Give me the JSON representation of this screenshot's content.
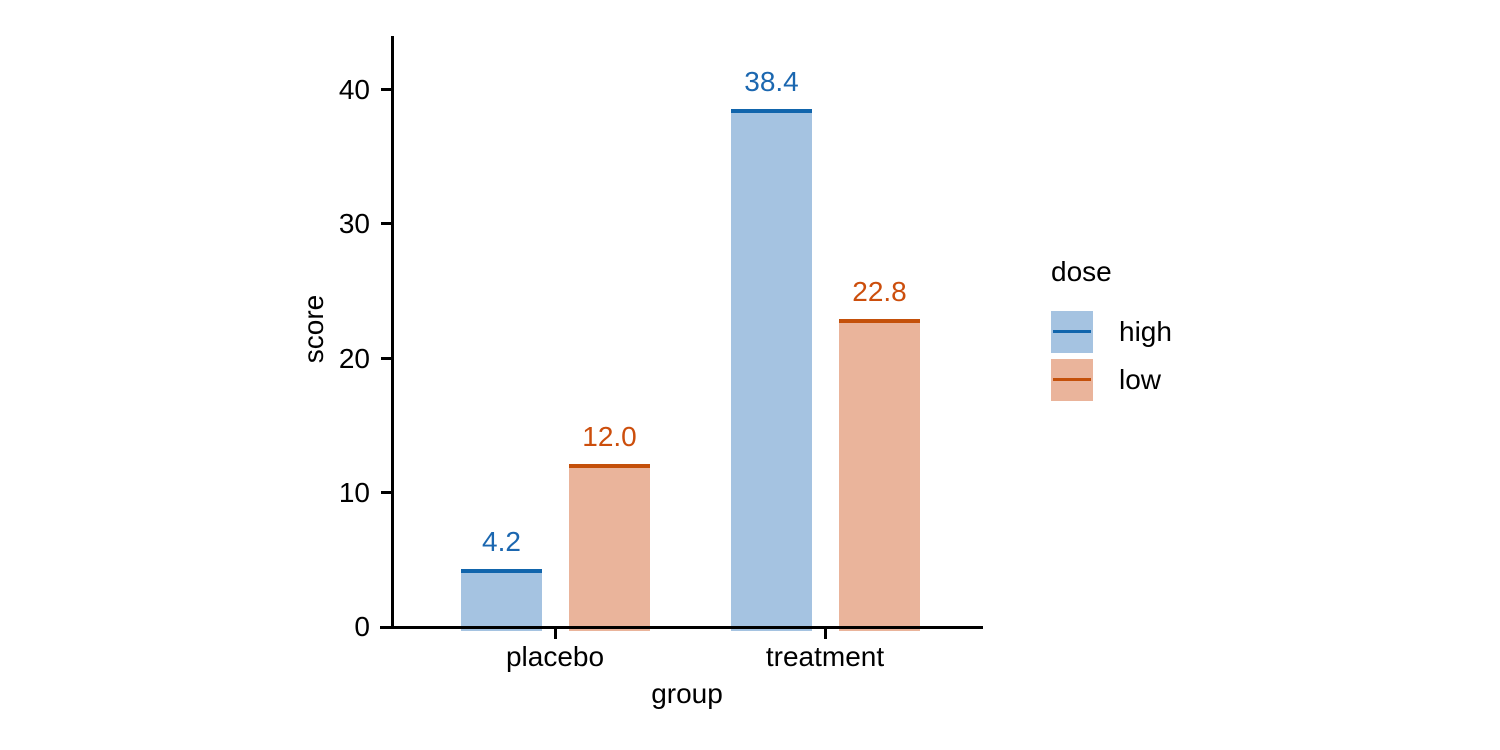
{
  "figure": {
    "background": "#ffffff",
    "axis_color": "#000000",
    "text_color": "#000000"
  },
  "chart_data": {
    "type": "bar",
    "title": "",
    "categories": [
      "placebo",
      "treatment"
    ],
    "series": [
      {
        "name": "high",
        "values": [
          4.2,
          38.4
        ],
        "value_labels": [
          "4.2",
          "38.4"
        ],
        "fill_color": "#a5c3e1",
        "line_color": "#1165ac",
        "label_color": "#1b67b0"
      },
      {
        "name": "low",
        "values": [
          12.0,
          22.8
        ],
        "value_labels": [
          "12.0",
          "22.8"
        ],
        "fill_color": "#eab49b",
        "line_color": "#c4500a",
        "label_color": "#cc4e0c"
      }
    ],
    "xlabel": "group",
    "ylabel": "score",
    "y_ticks": [
      0,
      10,
      20,
      30,
      40
    ],
    "y_tick_labels": [
      "0",
      "10",
      "20",
      "30",
      "40"
    ],
    "ylim": [
      0,
      44
    ],
    "grid": false,
    "legend": {
      "title": "dose",
      "position": "right",
      "entries": [
        "high",
        "low"
      ]
    }
  }
}
